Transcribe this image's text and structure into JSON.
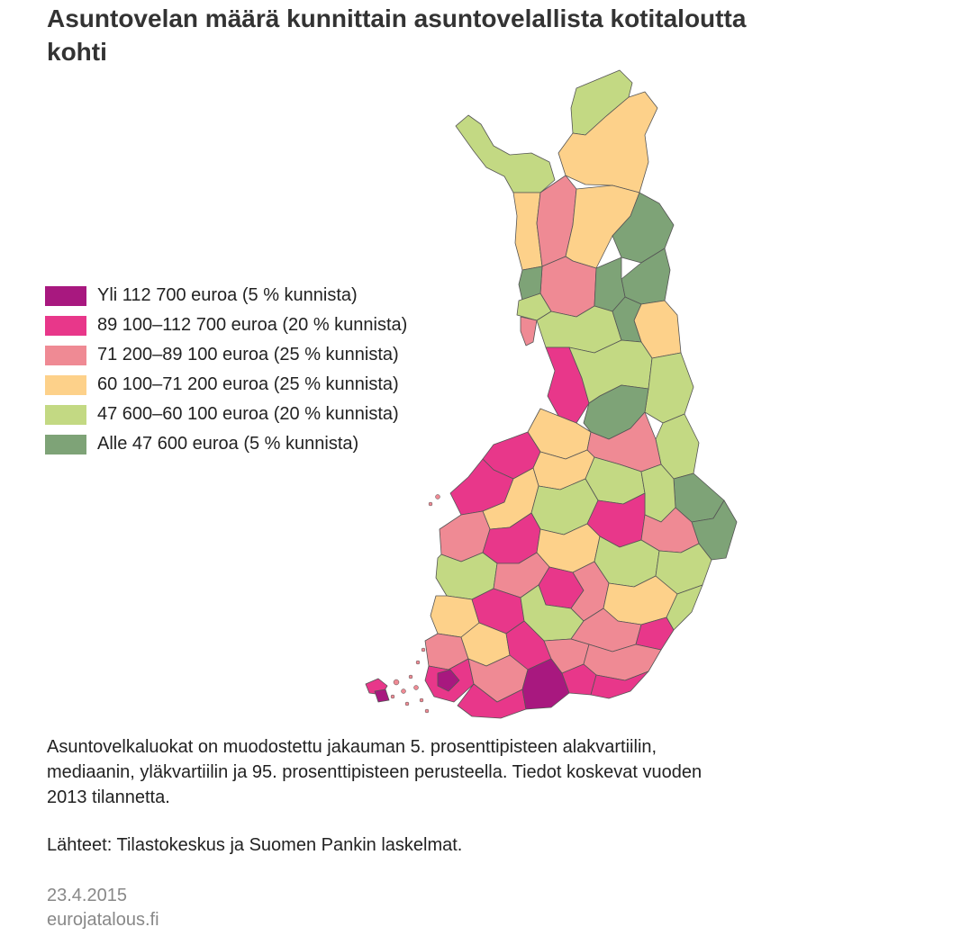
{
  "title": "Asuntovelan määrä kunnittain asuntovelallista kotitaloutta kohti",
  "legend": [
    {
      "label": "Yli 112 700 euroa (5 % kunnista)",
      "color": "#a8187f"
    },
    {
      "label": "89 100–112 700 euroa (20 % kunnista)",
      "color": "#e8378a"
    },
    {
      "label": "71 200–89 100 euroa (25 % kunnista)",
      "color": "#ef8a94"
    },
    {
      "label": "60 100–71 200 euroa (25 % kunnista)",
      "color": "#fdd18a"
    },
    {
      "label": "47 600–60 100 euroa (20 % kunnista)",
      "color": "#c3d983"
    },
    {
      "label": "Alle 47 600 euroa (5 % kunnista)",
      "color": "#7ea377"
    }
  ],
  "note": "Asuntovelkaluokat on muodostettu jakauman 5. prosenttipisteen alakvartiilin, mediaanin, yläkvartiilin ja 95. prosenttipisteen perusteella. Tiedot koskevat vuoden 2013 tilannetta.",
  "source": "Lähteet: Tilastokeskus ja Suomen Pankin laskelmat.",
  "date": "23.4.2015",
  "site": "eurojatalous.fi"
}
